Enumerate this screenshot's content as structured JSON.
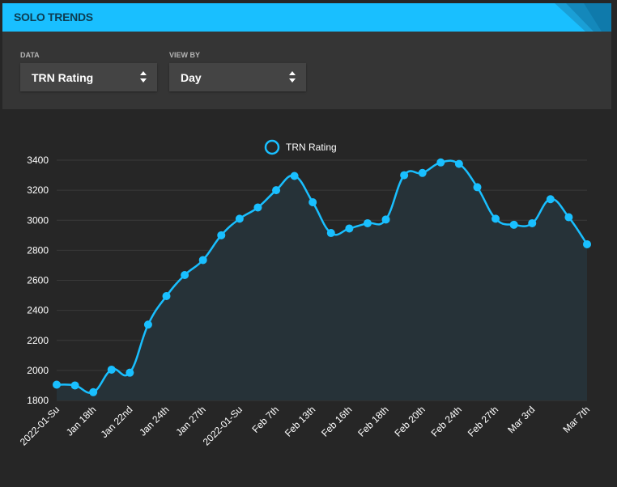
{
  "header": {
    "title": "SOLO TRENDS"
  },
  "controls": {
    "data_label": "DATA",
    "data_value": "TRN Rating",
    "view_label": "VIEW BY",
    "view_value": "Day"
  },
  "colors": {
    "accent": "#19bfff",
    "header_text": "#0d3d52",
    "fill": "#263238"
  },
  "chart_data": {
    "type": "line",
    "legend": "TRN Rating",
    "legend_position": "top-center",
    "grid": true,
    "ylim": [
      1800,
      3500
    ],
    "yticks": [
      1800,
      2000,
      2200,
      2400,
      2600,
      2800,
      3000,
      3200,
      3400
    ],
    "xtick_labels": [
      "2022-01-Su",
      "Jan 18th",
      "Jan 22nd",
      "Jan 24th",
      "Jan 27th",
      "2022-01-Su",
      "Feb 7th",
      "Feb 13th",
      "Feb 16th",
      "Feb 18th",
      "Feb 20th",
      "Feb 24th",
      "Feb 27th",
      "Mar 3rd",
      "Mar 7th"
    ],
    "xtick_index": [
      0,
      2,
      4,
      6,
      8,
      10,
      12,
      14,
      16,
      18,
      20,
      22,
      24,
      26,
      29
    ],
    "series": [
      {
        "name": "TRN Rating",
        "values": [
          1905,
          1900,
          1855,
          2005,
          1985,
          2305,
          2495,
          2635,
          2735,
          2900,
          3010,
          3085,
          3200,
          3295,
          3120,
          2915,
          2945,
          2980,
          3005,
          3300,
          3315,
          3385,
          3375,
          3220,
          3010,
          2970,
          2980,
          3140,
          3020,
          2840
        ]
      }
    ]
  }
}
